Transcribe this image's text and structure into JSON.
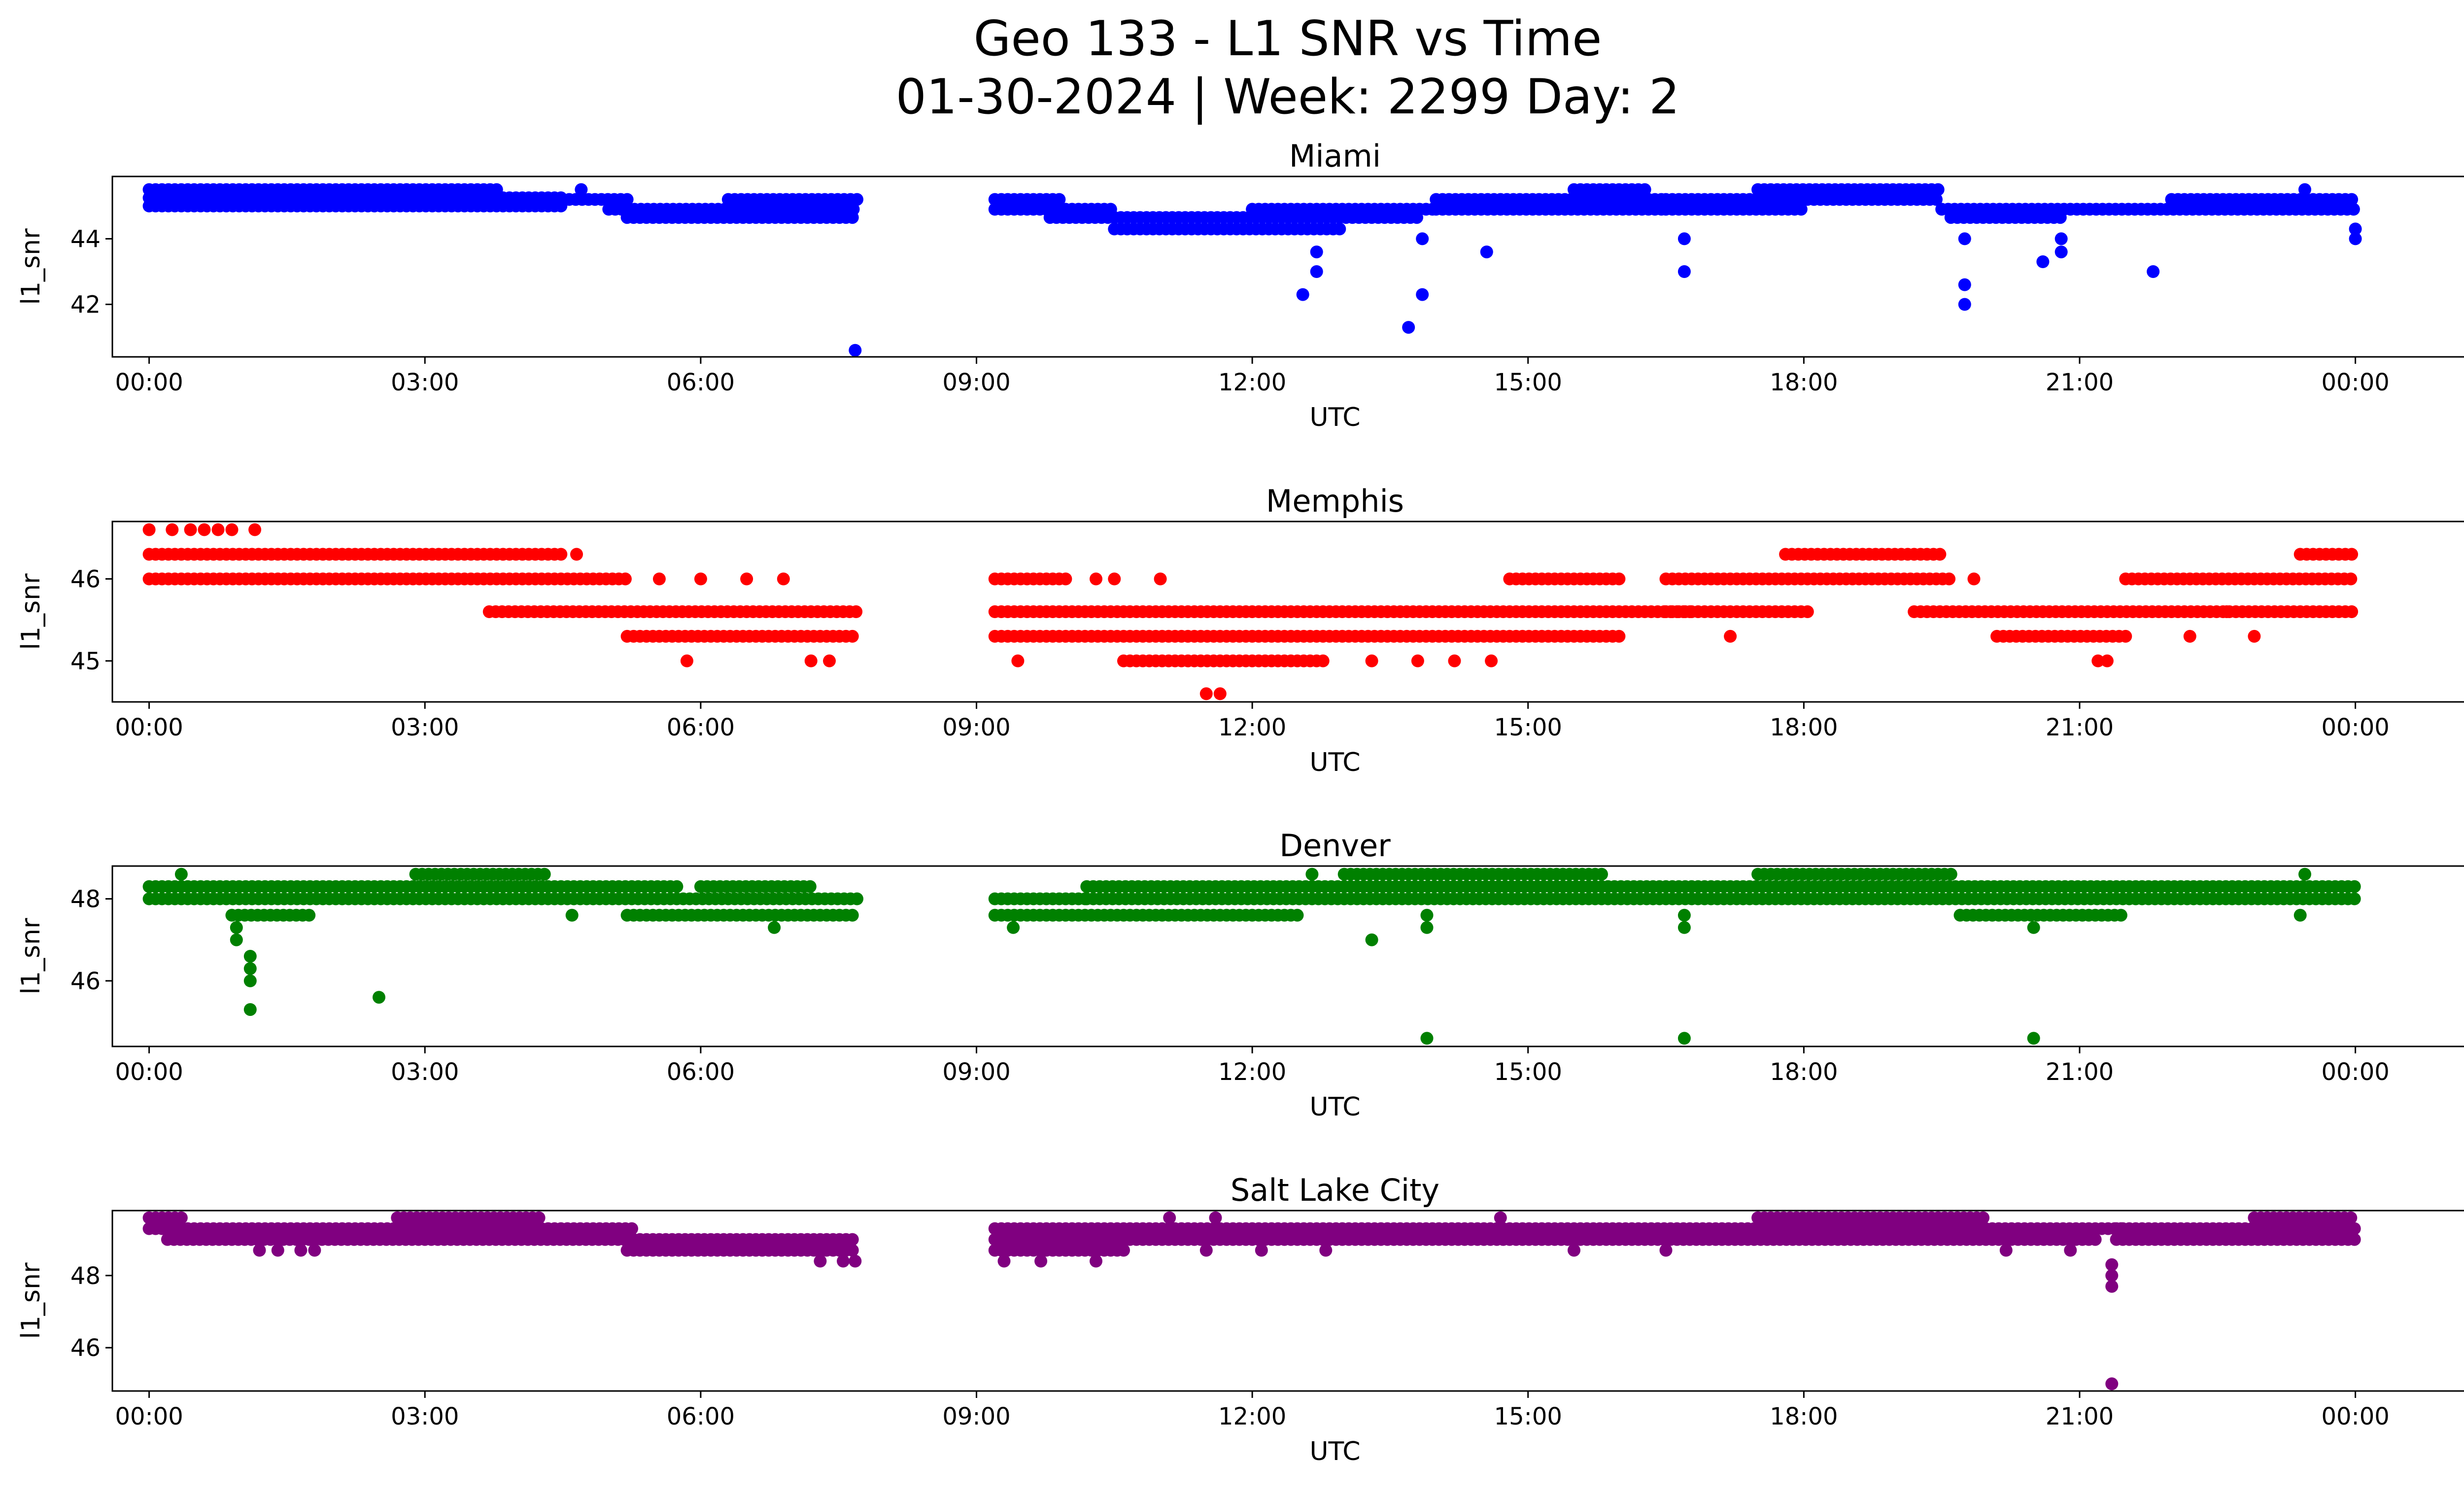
{
  "title": {
    "line1": "Geo 133 - L1 SNR vs Time",
    "line2": "01-30-2024 | Week: 2299 Day: 2"
  },
  "chart_data": [
    {
      "type": "scatter",
      "title": "Miami",
      "xlabel": "UTC",
      "ylabel": "l1_snr",
      "color": "#0000ff",
      "xlim": [
        -0.4,
        26.2
      ],
      "ylim": [
        40.4,
        45.9
      ],
      "xticks": [
        "00:00",
        "03:00",
        "06:00",
        "09:00",
        "12:00",
        "15:00",
        "18:00",
        "21:00",
        "00:00"
      ],
      "yticks": [
        42,
        44
      ],
      "series": [
        {
          "bands": [
            {
              "x": [
                0.0,
                4.5
              ],
              "y": 45.25
            },
            {
              "x": [
                0.0,
                4.5
              ],
              "y": 45.0
            },
            {
              "x": [
                0.0,
                3.8
              ],
              "y": 45.5
            },
            {
              "x": [
                4.5,
                5.2
              ],
              "y": 45.2
            },
            {
              "x": [
                5.0,
                7.7
              ],
              "y": 44.9
            },
            {
              "x": [
                5.2,
                7.7
              ],
              "y": 44.65
            },
            {
              "x": [
                6.3,
                7.7
              ],
              "y": 45.2
            },
            {
              "x": [
                9.2,
                9.9
              ],
              "y": 45.2
            },
            {
              "x": [
                9.2,
                10.5
              ],
              "y": 44.9
            },
            {
              "x": [
                9.8,
                10.5
              ],
              "y": 44.65
            },
            {
              "x": [
                10.5,
                13.0
              ],
              "y": 44.3
            },
            {
              "x": [
                10.5,
                13.8
              ],
              "y": 44.65
            },
            {
              "x": [
                12.0,
                14.0
              ],
              "y": 44.9
            },
            {
              "x": [
                14.0,
                16.5
              ],
              "y": 45.2
            },
            {
              "x": [
                14.0,
                16.5
              ],
              "y": 44.9
            },
            {
              "x": [
                15.5,
                16.3
              ],
              "y": 45.5
            },
            {
              "x": [
                16.5,
                19.5
              ],
              "y": 45.2
            },
            {
              "x": [
                16.5,
                18.0
              ],
              "y": 44.9
            },
            {
              "x": [
                17.5,
                19.5
              ],
              "y": 45.5
            },
            {
              "x": [
                19.5,
                24.0
              ],
              "y": 44.9
            },
            {
              "x": [
                19.6,
                20.8
              ],
              "y": 44.65
            },
            {
              "x": [
                22.0,
                24.0
              ],
              "y": 45.2
            }
          ],
          "points": [
            {
              "x": 7.68,
              "y": 40.6
            },
            {
              "x": 12.55,
              "y": 42.3
            },
            {
              "x": 12.7,
              "y": 43.0
            },
            {
              "x": 12.7,
              "y": 43.6
            },
            {
              "x": 13.7,
              "y": 41.3
            },
            {
              "x": 13.85,
              "y": 42.3
            },
            {
              "x": 13.85,
              "y": 44.0
            },
            {
              "x": 14.55,
              "y": 43.6
            },
            {
              "x": 16.7,
              "y": 43.0
            },
            {
              "x": 16.7,
              "y": 44.0
            },
            {
              "x": 19.75,
              "y": 42.0
            },
            {
              "x": 19.75,
              "y": 42.6
            },
            {
              "x": 19.75,
              "y": 44.0
            },
            {
              "x": 20.6,
              "y": 43.3
            },
            {
              "x": 20.8,
              "y": 43.6
            },
            {
              "x": 20.8,
              "y": 44.0
            },
            {
              "x": 21.8,
              "y": 43.0
            },
            {
              "x": 24.0,
              "y": 44.0
            },
            {
              "x": 24.0,
              "y": 44.3
            },
            {
              "x": 23.45,
              "y": 45.5
            },
            {
              "x": 4.7,
              "y": 45.5
            },
            {
              "x": 2.8,
              "y": 45.5
            }
          ]
        }
      ]
    },
    {
      "type": "scatter",
      "title": "Memphis",
      "xlabel": "UTC",
      "ylabel": "l1_snr",
      "color": "#ff0000",
      "xlim": [
        -0.4,
        26.2
      ],
      "ylim": [
        44.5,
        46.7
      ],
      "xticks": [
        "00:00",
        "03:00",
        "06:00",
        "09:00",
        "12:00",
        "15:00",
        "18:00",
        "21:00",
        "00:00"
      ],
      "yticks": [
        45,
        46
      ],
      "series": [
        {
          "bands": [
            {
              "x": [
                0.0,
                4.5
              ],
              "y": 46.3
            },
            {
              "x": [
                0.0,
                5.2
              ],
              "y": 46.0
            },
            {
              "x": [
                3.7,
                7.7
              ],
              "y": 45.6
            },
            {
              "x": [
                5.2,
                7.7
              ],
              "y": 45.3
            },
            {
              "x": [
                9.2,
                10.0
              ],
              "y": 46.0
            },
            {
              "x": [
                9.2,
                16.8
              ],
              "y": 45.6
            },
            {
              "x": [
                9.2,
                16.0
              ],
              "y": 45.3
            },
            {
              "x": [
                10.6,
                12.8
              ],
              "y": 45.0
            },
            {
              "x": [
                14.8,
                16.0
              ],
              "y": 46.0
            },
            {
              "x": [
                16.5,
                19.6
              ],
              "y": 46.0
            },
            {
              "x": [
                16.5,
                18.1
              ],
              "y": 45.6
            },
            {
              "x": [
                17.8,
                19.5
              ],
              "y": 46.3
            },
            {
              "x": [
                19.2,
                24.0
              ],
              "y": 45.6
            },
            {
              "x": [
                20.1,
                21.5
              ],
              "y": 45.3
            },
            {
              "x": [
                21.5,
                24.0
              ],
              "y": 46.0
            },
            {
              "x": [
                23.4,
                24.0
              ],
              "y": 46.3
            }
          ],
          "points": [
            {
              "x": 0.0,
              "y": 46.6
            },
            {
              "x": 0.25,
              "y": 46.6
            },
            {
              "x": 0.45,
              "y": 46.6
            },
            {
              "x": 0.6,
              "y": 46.6
            },
            {
              "x": 0.75,
              "y": 46.6
            },
            {
              "x": 0.9,
              "y": 46.6
            },
            {
              "x": 1.15,
              "y": 46.6
            },
            {
              "x": 4.65,
              "y": 46.3
            },
            {
              "x": 5.55,
              "y": 46.0
            },
            {
              "x": 6.0,
              "y": 46.0
            },
            {
              "x": 6.5,
              "y": 46.0
            },
            {
              "x": 6.9,
              "y": 46.0
            },
            {
              "x": 5.85,
              "y": 45.0
            },
            {
              "x": 7.2,
              "y": 45.0
            },
            {
              "x": 7.4,
              "y": 45.0
            },
            {
              "x": 9.45,
              "y": 45.0
            },
            {
              "x": 10.3,
              "y": 46.0
            },
            {
              "x": 10.5,
              "y": 46.0
            },
            {
              "x": 11.0,
              "y": 46.0
            },
            {
              "x": 11.5,
              "y": 44.6
            },
            {
              "x": 11.65,
              "y": 44.6
            },
            {
              "x": 13.3,
              "y": 45.0
            },
            {
              "x": 13.8,
              "y": 45.0
            },
            {
              "x": 14.2,
              "y": 45.0
            },
            {
              "x": 14.6,
              "y": 45.0
            },
            {
              "x": 17.2,
              "y": 45.3
            },
            {
              "x": 19.85,
              "y": 46.0
            },
            {
              "x": 21.2,
              "y": 45.0
            },
            {
              "x": 21.3,
              "y": 45.0
            },
            {
              "x": 22.2,
              "y": 45.3
            },
            {
              "x": 22.9,
              "y": 45.3
            },
            {
              "x": 22.6,
              "y": 45.6
            }
          ]
        }
      ]
    },
    {
      "type": "scatter",
      "title": "Denver",
      "xlabel": "UTC",
      "ylabel": "l1_snr",
      "color": "#008000",
      "xlim": [
        -0.4,
        26.2
      ],
      "ylim": [
        44.4,
        48.8
      ],
      "xticks": [
        "00:00",
        "03:00",
        "06:00",
        "09:00",
        "12:00",
        "15:00",
        "18:00",
        "21:00",
        "00:00"
      ],
      "yticks": [
        46,
        48
      ],
      "series": [
        {
          "bands": [
            {
              "x": [
                0.0,
                5.8
              ],
              "y": 48.3
            },
            {
              "x": [
                0.0,
                7.7
              ],
              "y": 48.0
            },
            {
              "x": [
                0.9,
                1.8
              ],
              "y": 47.6
            },
            {
              "x": [
                2.9,
                4.3
              ],
              "y": 48.6
            },
            {
              "x": [
                5.2,
                7.7
              ],
              "y": 47.6
            },
            {
              "x": [
                6.0,
                7.2
              ],
              "y": 48.3
            },
            {
              "x": [
                9.2,
                10.2
              ],
              "y": 48.0
            },
            {
              "x": [
                9.2,
                12.5
              ],
              "y": 47.6
            },
            {
              "x": [
                10.2,
                24.0
              ],
              "y": 48.3
            },
            {
              "x": [
                10.2,
                24.0
              ],
              "y": 48.0
            },
            {
              "x": [
                13.0,
                15.8
              ],
              "y": 48.6
            },
            {
              "x": [
                17.5,
                19.6
              ],
              "y": 48.6
            },
            {
              "x": [
                19.7,
                21.5
              ],
              "y": 47.6
            }
          ],
          "points": [
            {
              "x": 0.35,
              "y": 48.6
            },
            {
              "x": 0.95,
              "y": 47.3
            },
            {
              "x": 0.95,
              "y": 47.0
            },
            {
              "x": 1.1,
              "y": 46.6
            },
            {
              "x": 1.1,
              "y": 46.3
            },
            {
              "x": 1.1,
              "y": 46.0
            },
            {
              "x": 1.1,
              "y": 45.3
            },
            {
              "x": 2.5,
              "y": 45.6
            },
            {
              "x": 4.6,
              "y": 47.6
            },
            {
              "x": 6.8,
              "y": 47.3
            },
            {
              "x": 9.4,
              "y": 47.3
            },
            {
              "x": 12.65,
              "y": 48.6
            },
            {
              "x": 13.3,
              "y": 47.0
            },
            {
              "x": 13.9,
              "y": 47.3
            },
            {
              "x": 13.9,
              "y": 47.6
            },
            {
              "x": 13.9,
              "y": 44.6
            },
            {
              "x": 16.7,
              "y": 47.3
            },
            {
              "x": 16.7,
              "y": 47.6
            },
            {
              "x": 16.7,
              "y": 44.6
            },
            {
              "x": 20.5,
              "y": 47.3
            },
            {
              "x": 20.5,
              "y": 44.6
            },
            {
              "x": 23.4,
              "y": 47.6
            },
            {
              "x": 23.45,
              "y": 48.6
            }
          ]
        }
      ]
    },
    {
      "type": "scatter",
      "title": "Salt Lake City",
      "xlabel": "UTC",
      "ylabel": "l1_snr",
      "color": "#800080",
      "xlim": [
        -0.4,
        26.2
      ],
      "ylim": [
        44.8,
        49.8
      ],
      "xticks": [
        "00:00",
        "03:00",
        "06:00",
        "09:00",
        "12:00",
        "15:00",
        "18:00",
        "21:00",
        "00:00"
      ],
      "yticks": [
        46,
        48
      ],
      "series": [
        {
          "bands": [
            {
              "x": [
                0.0,
                0.35
              ],
              "y": 49.6
            },
            {
              "x": [
                0.0,
                5.3
              ],
              "y": 49.3
            },
            {
              "x": [
                0.2,
                5.3
              ],
              "y": 49.0
            },
            {
              "x": [
                2.7,
                4.3
              ],
              "y": 49.6
            },
            {
              "x": [
                5.2,
                7.7
              ],
              "y": 49.0
            },
            {
              "x": [
                5.2,
                7.7
              ],
              "y": 48.7
            },
            {
              "x": [
                9.2,
                21.5
              ],
              "y": 49.3
            },
            {
              "x": [
                9.2,
                21.2
              ],
              "y": 49.0
            },
            {
              "x": [
                9.2,
                10.6
              ],
              "y": 48.7
            },
            {
              "x": [
                17.5,
                20.0
              ],
              "y": 49.6
            },
            {
              "x": [
                21.4,
                24.0
              ],
              "y": 49.3
            },
            {
              "x": [
                21.4,
                24.0
              ],
              "y": 49.0
            },
            {
              "x": [
                22.9,
                24.0
              ],
              "y": 49.6
            }
          ],
          "points": [
            {
              "x": 1.2,
              "y": 48.7
            },
            {
              "x": 1.4,
              "y": 48.7
            },
            {
              "x": 1.65,
              "y": 48.7
            },
            {
              "x": 1.8,
              "y": 48.7
            },
            {
              "x": 7.3,
              "y": 48.4
            },
            {
              "x": 7.55,
              "y": 48.4
            },
            {
              "x": 7.68,
              "y": 48.4
            },
            {
              "x": 9.3,
              "y": 48.4
            },
            {
              "x": 9.7,
              "y": 48.4
            },
            {
              "x": 10.3,
              "y": 48.4
            },
            {
              "x": 11.1,
              "y": 49.6
            },
            {
              "x": 11.6,
              "y": 49.6
            },
            {
              "x": 11.5,
              "y": 48.7
            },
            {
              "x": 12.1,
              "y": 48.7
            },
            {
              "x": 12.8,
              "y": 48.7
            },
            {
              "x": 14.7,
              "y": 49.6
            },
            {
              "x": 15.5,
              "y": 48.7
            },
            {
              "x": 16.5,
              "y": 48.7
            },
            {
              "x": 20.2,
              "y": 48.7
            },
            {
              "x": 20.9,
              "y": 48.7
            },
            {
              "x": 21.35,
              "y": 48.3
            },
            {
              "x": 21.35,
              "y": 48.0
            },
            {
              "x": 21.35,
              "y": 47.7
            },
            {
              "x": 21.35,
              "y": 45.0
            }
          ]
        }
      ]
    }
  ]
}
